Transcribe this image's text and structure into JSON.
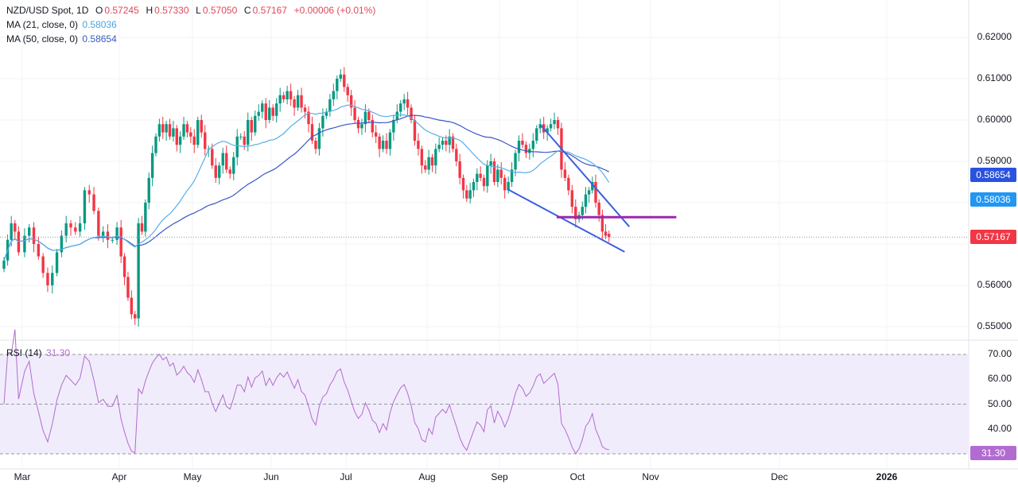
{
  "header": {
    "symbol": "NZD/USD Spot, 1D",
    "open_label": "O",
    "open": "0.57245",
    "high_label": "H",
    "high": "0.57330",
    "low_label": "L",
    "low": "0.57050",
    "close_label": "C",
    "close": "0.57167",
    "change": "+0.00006 (+0.01%)",
    "ma21_label": "MA (21, close, 0)",
    "ma21_value": "0.58036",
    "ma50_label": "MA (50, close, 0)",
    "ma50_value": "0.58654",
    "rsi_label": "RSI (14)",
    "rsi_value": "31.30"
  },
  "colors": {
    "up": "#089981",
    "down": "#f23645",
    "ma21": "#5aaee6",
    "ma50": "#3a56c8",
    "ma50_badge": "#2a52e0",
    "ma21_badge": "#2196f3",
    "rsi": "#b26bd0",
    "rsi_band": "#f1ecfb",
    "purple_line": "#9c27b0",
    "trendline": "#3b5fe0"
  },
  "chart_data": {
    "type": "candlestick",
    "timeframe": "1D",
    "price_ticks": [
      "0.62000",
      "0.61000",
      "0.60000",
      "0.59000",
      "0.56000",
      "0.55000"
    ],
    "price_range": [
      0.5485,
      0.6245
    ],
    "rsi_ticks": [
      "70.00",
      "60.00",
      "50.00",
      "40.00"
    ],
    "rsi_levels": [
      70,
      50,
      30
    ],
    "last_price": "0.57167",
    "ma21_last": "0.58036",
    "ma50_last": "0.58654",
    "rsi_last": "31.30",
    "time_labels": [
      "Mar",
      "Apr",
      "May",
      "Jun",
      "Jul",
      "Aug",
      "Sep",
      "Oct",
      "Nov",
      "Dec",
      "2026"
    ],
    "closes_by_month": [
      {
        "month": "Feb",
        "closes": [
          0.566,
          0.571,
          0.575,
          0.573,
          0.568
        ]
      },
      {
        "month": "Mar",
        "closes": [
          0.572,
          0.574,
          0.57,
          0.567,
          0.563,
          0.56,
          0.563,
          0.568,
          0.572,
          0.575,
          0.574,
          0.573,
          0.575,
          0.583,
          0.582,
          0.578,
          0.572,
          0.573,
          0.571,
          0.571,
          0.574
        ]
      },
      {
        "month": "Apr",
        "closes": [
          0.567,
          0.562,
          0.557,
          0.553,
          0.552,
          0.575,
          0.573,
          0.58,
          0.586,
          0.592,
          0.596,
          0.599,
          0.597,
          0.599,
          0.596,
          0.598,
          0.594,
          0.596,
          0.599,
          0.597,
          0.596
        ]
      },
      {
        "month": "May",
        "closes": [
          0.594,
          0.6,
          0.597,
          0.593,
          0.593,
          0.589,
          0.586,
          0.589,
          0.592,
          0.588,
          0.587,
          0.591,
          0.596,
          0.596,
          0.594,
          0.6,
          0.597,
          0.601,
          0.602,
          0.604,
          0.6,
          0.603
        ]
      },
      {
        "month": "Jun",
        "closes": [
          0.601,
          0.604,
          0.606,
          0.605,
          0.607,
          0.605,
          0.603,
          0.606,
          0.603,
          0.602,
          0.599,
          0.595,
          0.593,
          0.598,
          0.601,
          0.602,
          0.605,
          0.607,
          0.61,
          0.611,
          0.608
        ]
      },
      {
        "month": "Jul",
        "closes": [
          0.606,
          0.603,
          0.6,
          0.598,
          0.599,
          0.602,
          0.6,
          0.597,
          0.596,
          0.593,
          0.595,
          0.593,
          0.597,
          0.6,
          0.602,
          0.604,
          0.605,
          0.603,
          0.6,
          0.595,
          0.593,
          0.589,
          0.588
        ]
      },
      {
        "month": "Aug",
        "closes": [
          0.591,
          0.589,
          0.593,
          0.594,
          0.595,
          0.594,
          0.596,
          0.593,
          0.59,
          0.586,
          0.583,
          0.581,
          0.583,
          0.585,
          0.587,
          0.586,
          0.584,
          0.589,
          0.59,
          0.585,
          0.588
        ]
      },
      {
        "month": "Sep",
        "closes": [
          0.586,
          0.583,
          0.585,
          0.588,
          0.592,
          0.595,
          0.594,
          0.592,
          0.593,
          0.595,
          0.598,
          0.599,
          0.597,
          0.598,
          0.599,
          0.6,
          0.598,
          0.588,
          0.586,
          0.583,
          0.579,
          0.576
        ]
      },
      {
        "month": "Oct",
        "closes": [
          0.577,
          0.579,
          0.582,
          0.583,
          0.585,
          0.58,
          0.577,
          0.573,
          0.572,
          0.57167
        ]
      }
    ],
    "drawings": [
      {
        "type": "trendline",
        "from": [
          "Sep",
          17,
          0.5987
        ],
        "to": [
          "Oct",
          23,
          0.5742
        ]
      },
      {
        "type": "trendline",
        "from": [
          "Sep",
          4,
          0.5833
        ],
        "to": [
          "Oct",
          21,
          0.5681
        ]
      },
      {
        "type": "horizontal",
        "from": [
          "Sep",
          23,
          0.5765
        ],
        "to": [
          "Nov",
          7,
          0.5765
        ]
      }
    ]
  }
}
